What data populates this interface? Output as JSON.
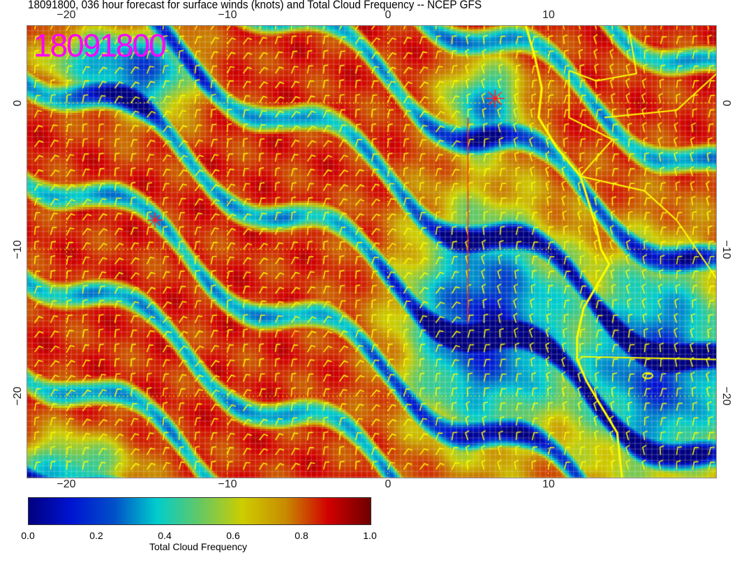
{
  "title": "18091800, 036 hour forecast for surface winds (knots) and Total Cloud Frequency -- NCEP GFS",
  "date_label": "18091800",
  "map": {
    "lon_range": [
      -22.5,
      20.5
    ],
    "lat_range": [
      -25.6,
      5.3
    ],
    "lon_ticks": [
      "−20",
      "−10",
      "0",
      "10"
    ],
    "lat_ticks": [
      "0",
      "−10",
      "−20"
    ],
    "coastline_color": "#ffff00",
    "wind_barb_color": "#ffff00",
    "marker_color": "#ff2020"
  },
  "colorbar": {
    "label": "Total Cloud Frequency",
    "ticks": [
      "0.0",
      "0.2",
      "0.4",
      "0.6",
      "0.8",
      "1.0"
    ],
    "range": [
      0,
      1
    ],
    "colors": [
      "#00007f",
      "#0014d2",
      "#0050c8",
      "#00cdcd",
      "#64c864",
      "#cdcd00",
      "#c88c00",
      "#d20000",
      "#6e0000"
    ]
  }
}
